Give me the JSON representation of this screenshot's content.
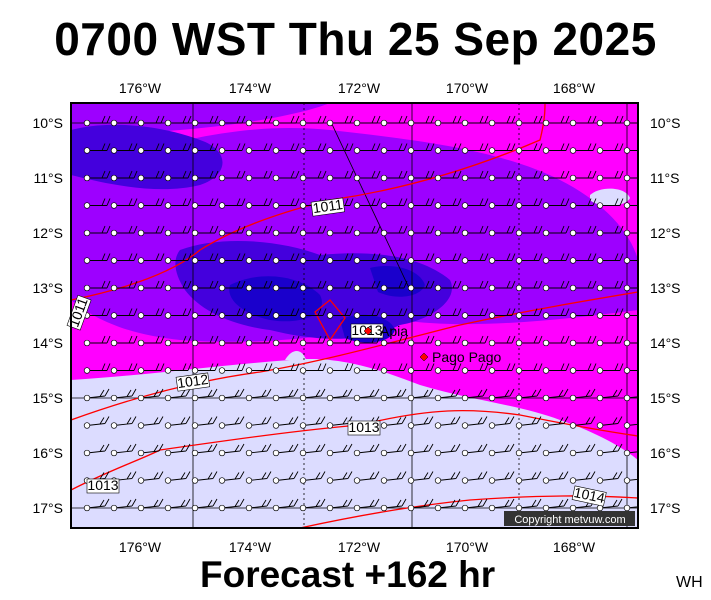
{
  "title": "0700 WST Thu 25 Sep 2025",
  "subtitle": "Forecast +162 hr",
  "author_tag": "WH",
  "copyright": "Copyright metvuw.com",
  "lon_labels": [
    "176°W",
    "174°W",
    "172°W",
    "170°W",
    "168°W"
  ],
  "lat_labels": [
    "10°S",
    "11°S",
    "12°S",
    "13°S",
    "14°S",
    "15°S",
    "16°S",
    "17°S"
  ],
  "isobar_labels": [
    "1011",
    "1011",
    "1012",
    "1013",
    "1013",
    "1013",
    "1014"
  ],
  "place_labels": [
    "Apia",
    "Pago Pago"
  ],
  "colors": {
    "high_rain": "#ff00ff",
    "mid_rain": "#9d00ff",
    "heavy_rain": "#4400dd",
    "extreme_rain": "#1a00cc",
    "no_rain": "#dcdcff",
    "isobar": "#ff0000"
  },
  "icons": [
    "wind-barb-icon",
    "station-circle-icon",
    "city-marker-icon"
  ]
}
